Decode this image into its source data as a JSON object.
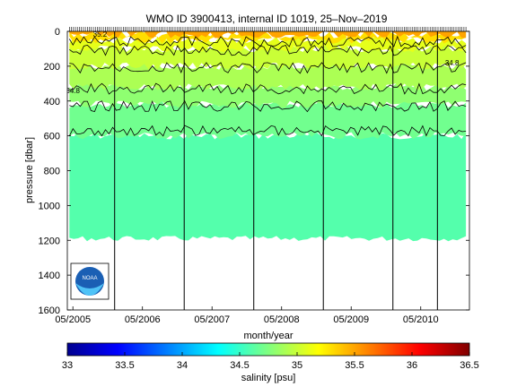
{
  "chart_data": {
    "type": "heatmap",
    "title": "WMO ID 3900413, internal ID 1019, 25–Nov–2019",
    "xlabel": "month/year",
    "ylabel": "pressure [dbar]",
    "colorbar_label": "salinity [psu]",
    "x_ticks": [
      "05/2005",
      "05/2006",
      "05/2007",
      "05/2008",
      "05/2009",
      "05/2010"
    ],
    "x_tick_dates": [
      2005.33,
      2006.33,
      2007.33,
      2008.33,
      2009.33,
      2010.33
    ],
    "xlim": [
      2005.25,
      2011.03
    ],
    "y_ticks": [
      0,
      200,
      400,
      600,
      800,
      1000,
      1200,
      1400,
      1600
    ],
    "ylim": [
      0,
      1600
    ],
    "y_reversed": true,
    "colorbar_ticks": [
      33,
      33.5,
      34,
      34.5,
      35,
      35.5,
      36,
      36.5
    ],
    "colorbar_range": [
      33,
      36.5
    ],
    "colormap": [
      "#00008f",
      "#0000ff",
      "#0080ff",
      "#00ffff",
      "#80ff80",
      "#ffff00",
      "#ff8000",
      "#ff0000",
      "#800000"
    ],
    "data_start_date": 2005.28,
    "data_end_date": 2010.98,
    "max_profile_depth_dbar": 1190,
    "year_marker_dates": [
      2005.93,
      2006.93,
      2007.93,
      2008.93,
      2009.93,
      2010.57
    ],
    "layers": [
      {
        "salinity": 34.6,
        "top_dbar": 600,
        "bottom_dbar": 1190
      },
      {
        "salinity": 34.7,
        "top_dbar": 420,
        "bottom_dbar": 600
      },
      {
        "salinity": 34.8,
        "top_dbar": 320,
        "bottom_dbar": 420
      },
      {
        "salinity": 34.9,
        "top_dbar": 200,
        "bottom_dbar": 320
      },
      {
        "salinity": 35.0,
        "top_dbar": 100,
        "bottom_dbar": 200
      },
      {
        "salinity": 35.1,
        "top_dbar": 50,
        "bottom_dbar": 100
      },
      {
        "salinity": 35.3,
        "top_dbar": 20,
        "bottom_dbar": 50
      },
      {
        "salinity": 35.5,
        "top_dbar": 0,
        "bottom_dbar": 20
      }
    ],
    "contours": [
      {
        "level": 35.2,
        "mean_dbar": 60
      },
      {
        "level": 35.0,
        "mean_dbar": 110
      },
      {
        "level": 34.9,
        "mean_dbar": 210
      },
      {
        "level": 34.8,
        "mean_dbar": 330
      },
      {
        "level": 34.7,
        "mean_dbar": 430
      },
      {
        "level": 34.6,
        "mean_dbar": 570
      }
    ],
    "contour_labels": [
      {
        "text": "34.8",
        "date": 2005.33,
        "dbar": 340
      },
      {
        "text": "34.8",
        "date": 2010.78,
        "dbar": 180
      },
      {
        "text": "35.2",
        "date": 2005.72,
        "dbar": 15
      }
    ],
    "grid": false
  },
  "logo": {
    "text": "NOAA"
  }
}
